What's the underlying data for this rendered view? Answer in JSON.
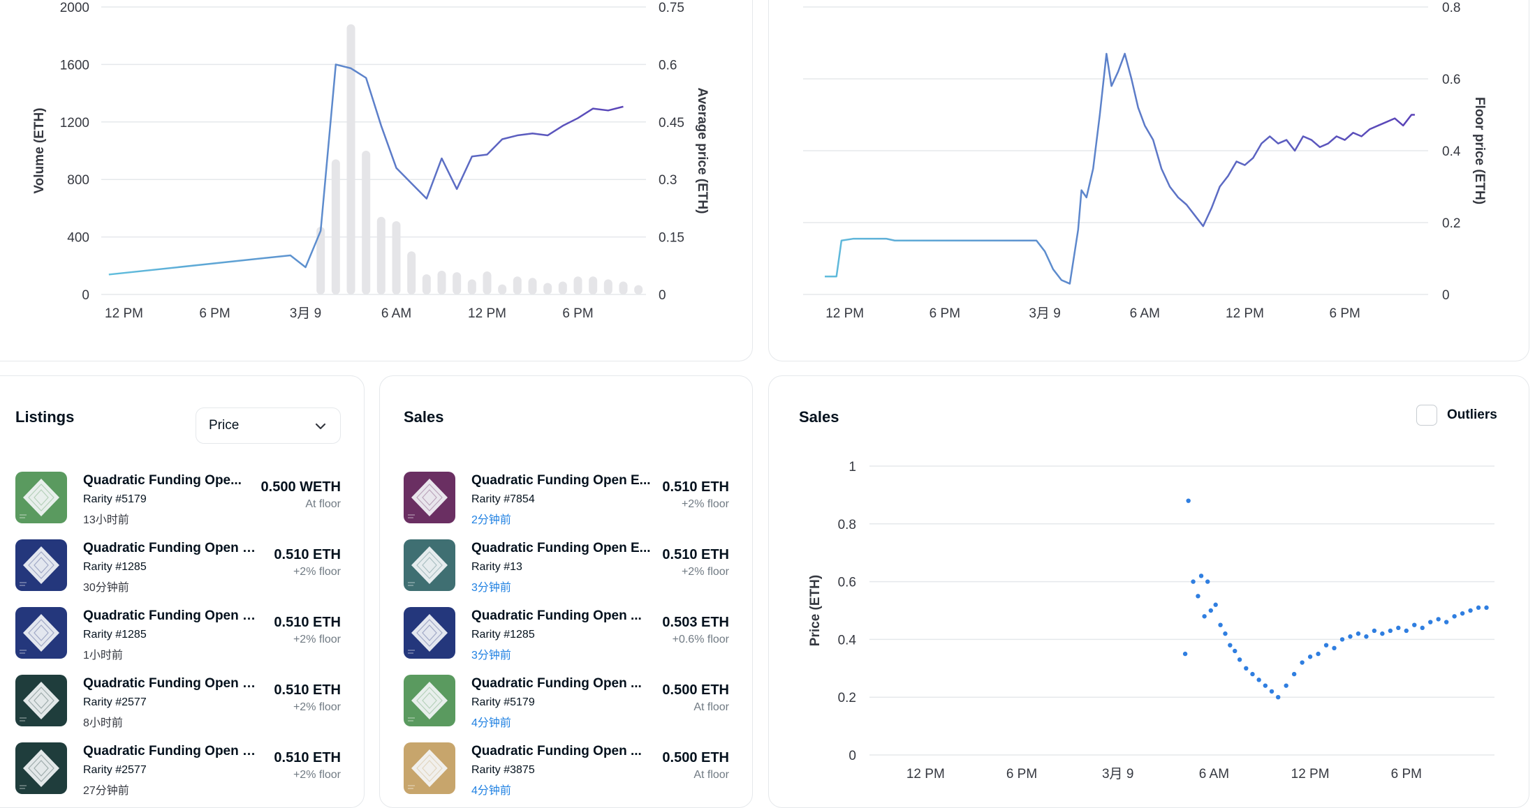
{
  "theme": {
    "line_start": "#5fc0dd",
    "line_end": "#5a3fb6",
    "bar": "#e5e5e8",
    "scatter": "#2f7ee0",
    "link": "#2081e2",
    "grid": "#e5e8eb",
    "axis_text": "#353840"
  },
  "chart_data": [
    {
      "type": "bar",
      "chart_id": "volume-price",
      "ylabel": "Volume (ETH)",
      "y2label": "Average price (ETH)",
      "ylim": [
        0,
        2000
      ],
      "y2lim": [
        0,
        0.75
      ],
      "y_ticks": [
        "2000",
        "1600",
        "1200",
        "800",
        "400",
        "0"
      ],
      "y2_ticks": [
        "0.75",
        "0.6",
        "0.45",
        "0.3",
        "0.15",
        "0"
      ],
      "x_ticks": [
        "12 PM",
        "6 PM",
        "3月 9",
        "6 AM",
        "12 PM",
        "6 PM"
      ],
      "x_tick_hours": [
        12,
        18,
        24,
        30,
        36,
        42
      ],
      "xlim": [
        10.5,
        46.5
      ],
      "volume_series": {
        "x": [
          25,
          26,
          27,
          28,
          29,
          30,
          31,
          32,
          33,
          34,
          35,
          36,
          37,
          38,
          39,
          40,
          41,
          42,
          43,
          44,
          45,
          46
        ],
        "values": [
          470,
          940,
          1880,
          1000,
          540,
          510,
          300,
          140,
          165,
          155,
          105,
          160,
          70,
          125,
          115,
          80,
          90,
          125,
          125,
          105,
          90,
          65
        ]
      },
      "avg_price_series": {
        "x": [
          11,
          23,
          24,
          25,
          26,
          27,
          28,
          29,
          30,
          31,
          32,
          33,
          34,
          35,
          36,
          37,
          38,
          39,
          40,
          41,
          42,
          43,
          44,
          45
        ],
        "values": [
          0.052,
          0.102,
          0.071,
          0.166,
          0.6,
          0.59,
          0.565,
          0.44,
          0.33,
          0.29,
          0.25,
          0.355,
          0.275,
          0.36,
          0.365,
          0.405,
          0.415,
          0.42,
          0.415,
          0.44,
          0.46,
          0.485,
          0.48,
          0.49
        ]
      }
    },
    {
      "type": "line",
      "chart_id": "floor-price",
      "y2label": "Floor price (ETH)",
      "y2lim": [
        0,
        0.8
      ],
      "y2_ticks": [
        "0.8",
        "0.6",
        "0.4",
        "0.2",
        "0"
      ],
      "x_ticks": [
        "12 PM",
        "6 PM",
        "3月 9",
        "6 AM",
        "12 PM",
        "6 PM"
      ],
      "x_tick_hours": [
        12,
        18,
        24,
        30,
        36,
        42
      ],
      "xlim": [
        9.5,
        47
      ],
      "series": [
        {
          "x": [
            10.8,
            11.5,
            11.8,
            12.5,
            14.5,
            15,
            23.5,
            24,
            24.5,
            25,
            25.5,
            26,
            26.2,
            26.5,
            26.9,
            27.3,
            27.7,
            28,
            28.4,
            28.8,
            29.2,
            29.6,
            30,
            30.5,
            31,
            31.5,
            32,
            32.5,
            33,
            33.5,
            34,
            34.5,
            35,
            35.5,
            36,
            36.5,
            37,
            37.5,
            38,
            38.5,
            39,
            39.5,
            40,
            40.5,
            41,
            41.5,
            42,
            42.5,
            43,
            43.5,
            44,
            44.5,
            45,
            45.5,
            46,
            46.2
          ],
          "values": [
            0.05,
            0.05,
            0.15,
            0.155,
            0.155,
            0.15,
            0.15,
            0.12,
            0.07,
            0.04,
            0.03,
            0.18,
            0.29,
            0.27,
            0.35,
            0.5,
            0.67,
            0.58,
            0.62,
            0.67,
            0.6,
            0.52,
            0.47,
            0.43,
            0.35,
            0.3,
            0.27,
            0.25,
            0.22,
            0.19,
            0.24,
            0.3,
            0.33,
            0.37,
            0.36,
            0.38,
            0.42,
            0.44,
            0.42,
            0.43,
            0.4,
            0.44,
            0.43,
            0.41,
            0.42,
            0.44,
            0.43,
            0.45,
            0.44,
            0.46,
            0.47,
            0.48,
            0.49,
            0.47,
            0.5,
            0.5
          ]
        }
      ]
    },
    {
      "type": "scatter",
      "chart_id": "sales-scatter",
      "ylabel": "Price (ETH)",
      "ylim": [
        0,
        1
      ],
      "y_ticks": [
        "1",
        "0.8",
        "0.6",
        "0.4",
        "0.2",
        "0"
      ],
      "x_ticks": [
        "12 PM",
        "6 PM",
        "3月 9",
        "6 AM",
        "12 PM",
        "6 PM"
      ],
      "x_tick_hours": [
        12,
        18,
        24,
        30,
        36,
        42
      ],
      "xlim": [
        8.5,
        47.5
      ],
      "points": {
        "x": [
          28.2,
          28.4,
          28.7,
          29,
          29.2,
          29.4,
          29.6,
          29.8,
          30.1,
          30.4,
          30.7,
          31,
          31.3,
          31.6,
          32,
          32.4,
          32.8,
          33.2,
          33.6,
          34,
          34.5,
          35,
          35.5,
          36,
          36.5,
          37,
          37.5,
          38,
          38.5,
          39,
          39.5,
          40,
          40.5,
          41,
          41.5,
          42,
          42.5,
          43,
          43.5,
          44,
          44.5,
          45,
          45.5,
          46,
          46.5,
          47
        ],
        "values": [
          0.35,
          0.88,
          0.6,
          0.55,
          0.62,
          0.48,
          0.6,
          0.5,
          0.52,
          0.45,
          0.42,
          0.38,
          0.36,
          0.33,
          0.3,
          0.28,
          0.26,
          0.24,
          0.22,
          0.2,
          0.24,
          0.28,
          0.32,
          0.34,
          0.35,
          0.38,
          0.37,
          0.4,
          0.41,
          0.42,
          0.41,
          0.43,
          0.42,
          0.43,
          0.44,
          0.43,
          0.45,
          0.44,
          0.46,
          0.47,
          0.46,
          0.48,
          0.49,
          0.5,
          0.51,
          0.51
        ]
      }
    }
  ],
  "listings": {
    "title": "Listings",
    "sort": {
      "value": "Price"
    },
    "items": [
      {
        "name": "Quadratic Funding Ope...",
        "rarity": "Rarity #5179",
        "time": "13小时前",
        "price": "0.500 WETH",
        "floor": "At floor",
        "thumb_bg": "#5a9a5f"
      },
      {
        "name": "Quadratic Funding Open E...",
        "rarity": "Rarity #1285",
        "time": "30分钟前",
        "price": "0.510 ETH",
        "floor": "+2% floor",
        "thumb_bg": "#24377c"
      },
      {
        "name": "Quadratic Funding Open E...",
        "rarity": "Rarity #1285",
        "time": "1小时前",
        "price": "0.510 ETH",
        "floor": "+2% floor",
        "thumb_bg": "#24377c"
      },
      {
        "name": "Quadratic Funding Open E...",
        "rarity": "Rarity #2577",
        "time": "8小时前",
        "price": "0.510 ETH",
        "floor": "+2% floor",
        "thumb_bg": "#1f3d3c"
      },
      {
        "name": "Quadratic Funding Open E...",
        "rarity": "Rarity #2577",
        "time": "27分钟前",
        "price": "0.510 ETH",
        "floor": "+2% floor",
        "thumb_bg": "#1f3d3c"
      }
    ]
  },
  "sales": {
    "title": "Sales",
    "items": [
      {
        "name": "Quadratic Funding Open E...",
        "rarity": "Rarity #7854",
        "time": "2分钟前",
        "price": "0.510 ETH",
        "floor": "+2% floor",
        "thumb_bg": "#6a2f62"
      },
      {
        "name": "Quadratic Funding Open E...",
        "rarity": "Rarity #13",
        "time": "3分钟前",
        "price": "0.510 ETH",
        "floor": "+2% floor",
        "thumb_bg": "#3f6f72"
      },
      {
        "name": "Quadratic Funding Open ...",
        "rarity": "Rarity #1285",
        "time": "3分钟前",
        "price": "0.503 ETH",
        "floor": "+0.6% floor",
        "thumb_bg": "#24377c"
      },
      {
        "name": "Quadratic Funding Open ...",
        "rarity": "Rarity #5179",
        "time": "4分钟前",
        "price": "0.500 ETH",
        "floor": "At floor",
        "thumb_bg": "#5a9a5f"
      },
      {
        "name": "Quadratic Funding Open ...",
        "rarity": "Rarity #3875",
        "time": "4分钟前",
        "price": "0.500 ETH",
        "floor": "At floor",
        "thumb_bg": "#c7a56c"
      }
    ]
  },
  "sales_chart": {
    "title": "Sales",
    "outliers_label": "Outliers",
    "outliers_checked": false
  }
}
